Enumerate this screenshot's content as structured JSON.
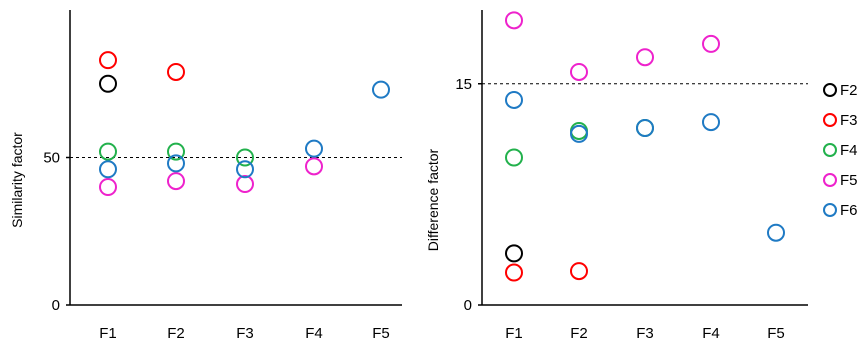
{
  "chart_data": [
    {
      "type": "scatter",
      "ylabel": "Similarity factor",
      "categories": [
        "F1",
        "F2",
        "F3",
        "F4",
        "F5"
      ],
      "ylim": [
        0,
        100
      ],
      "yticks": [
        0,
        50
      ],
      "reference_line": 50,
      "series": [
        {
          "name": "F2",
          "values": [
            75,
            null,
            null,
            null,
            null
          ]
        },
        {
          "name": "F3",
          "values": [
            83,
            79,
            null,
            null,
            null
          ]
        },
        {
          "name": "F4",
          "values": [
            52,
            52,
            50,
            null,
            null
          ]
        },
        {
          "name": "F5",
          "values": [
            40,
            42,
            41,
            47,
            null
          ]
        },
        {
          "name": "F6",
          "values": [
            46,
            48,
            46,
            53,
            73
          ]
        }
      ]
    },
    {
      "type": "scatter",
      "ylabel": "Difference factor",
      "categories": [
        "F1",
        "F2",
        "F3",
        "F4",
        "F5"
      ],
      "ylim": [
        0,
        20
      ],
      "yticks": [
        0,
        15
      ],
      "reference_line": 15,
      "series": [
        {
          "name": "F2",
          "values": [
            3.5,
            null,
            null,
            null,
            null
          ]
        },
        {
          "name": "F3",
          "values": [
            2.2,
            2.3,
            null,
            null,
            null
          ]
        },
        {
          "name": "F4",
          "values": [
            10.0,
            11.8,
            12.0,
            null,
            null
          ]
        },
        {
          "name": "F5",
          "values": [
            19.3,
            15.8,
            16.8,
            17.7,
            null
          ]
        },
        {
          "name": "F6",
          "values": [
            13.9,
            11.6,
            12.0,
            12.4,
            4.9
          ]
        }
      ]
    }
  ],
  "legend": {
    "placement": "right",
    "entries": [
      {
        "label": "F2",
        "color": "#000000"
      },
      {
        "label": "F3",
        "color": "#ff0000"
      },
      {
        "label": "F4",
        "color": "#22b14c"
      },
      {
        "label": "F5",
        "color": "#ee22cc"
      },
      {
        "label": "F6",
        "color": "#1f7ac4"
      }
    ]
  }
}
